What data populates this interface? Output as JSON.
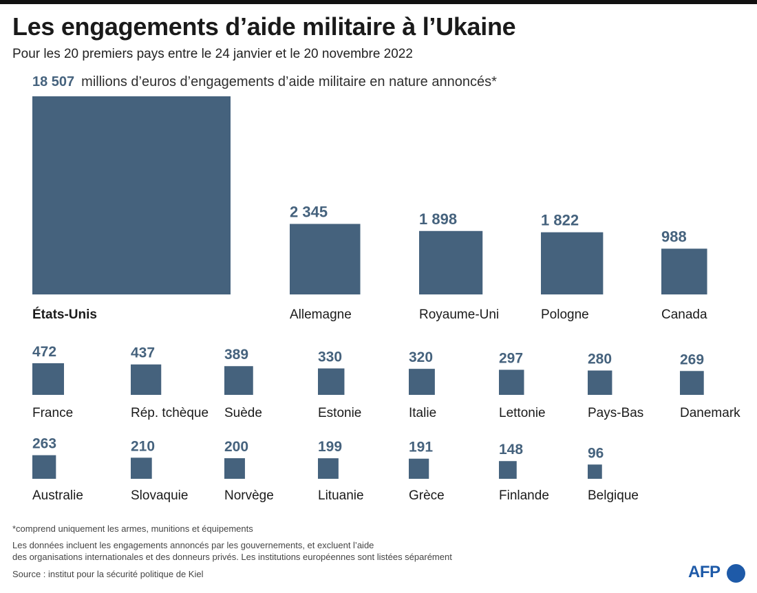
{
  "header": {
    "title": "Les engagements d’aide militaire à l’Ukaine",
    "subtitle": "Pour les 20 premiers pays entre le 24 janvier et le 20 novembre 2022",
    "first_value_label": "18 507",
    "unit_text": "millions d’euros d’engagements d’aide militaire en nature annoncés*"
  },
  "chart_data": {
    "type": "bar",
    "encoding": "square area proportional to value",
    "unit": "millions d’euros",
    "bar_color": "#45627d",
    "items": [
      {
        "name": "États-Unis",
        "value": 18507,
        "label": "18 507"
      },
      {
        "name": "Allemagne",
        "value": 2345,
        "label": "2 345"
      },
      {
        "name": "Royaume-Uni",
        "value": 1898,
        "label": "1 898"
      },
      {
        "name": "Pologne",
        "value": 1822,
        "label": "1 822"
      },
      {
        "name": "Canada",
        "value": 988,
        "label": "988"
      },
      {
        "name": "France",
        "value": 472,
        "label": "472"
      },
      {
        "name": "Rép. tchèque",
        "value": 437,
        "label": "437"
      },
      {
        "name": "Suède",
        "value": 389,
        "label": "389"
      },
      {
        "name": "Estonie",
        "value": 330,
        "label": "330"
      },
      {
        "name": "Italie",
        "value": 320,
        "label": "320"
      },
      {
        "name": "Lettonie",
        "value": 297,
        "label": "297"
      },
      {
        "name": "Pays-Bas",
        "value": 280,
        "label": "280"
      },
      {
        "name": "Danemark",
        "value": 269,
        "label": "269"
      },
      {
        "name": "Australie",
        "value": 263,
        "label": "263"
      },
      {
        "name": "Slovaquie",
        "value": 210,
        "label": "210"
      },
      {
        "name": "Norvège",
        "value": 200,
        "label": "200"
      },
      {
        "name": "Lituanie",
        "value": 199,
        "label": "199"
      },
      {
        "name": "Grèce",
        "value": 191,
        "label": "191"
      },
      {
        "name": "Finlande",
        "value": 148,
        "label": "148"
      },
      {
        "name": "Belgique",
        "value": 96,
        "label": "96"
      }
    ]
  },
  "footer": {
    "note1": "*comprend uniquement les armes, munitions et équipements",
    "note2_line1": "Les données incluent les engagements annoncés par les gouvernements, et excluent l’aide",
    "note2_line2": "des organisations internationales et des donneurs privés. Les institutions européennes sont listées séparément",
    "source": "Source : institut pour la sécurité politique de Kiel",
    "logo": "AFP"
  }
}
